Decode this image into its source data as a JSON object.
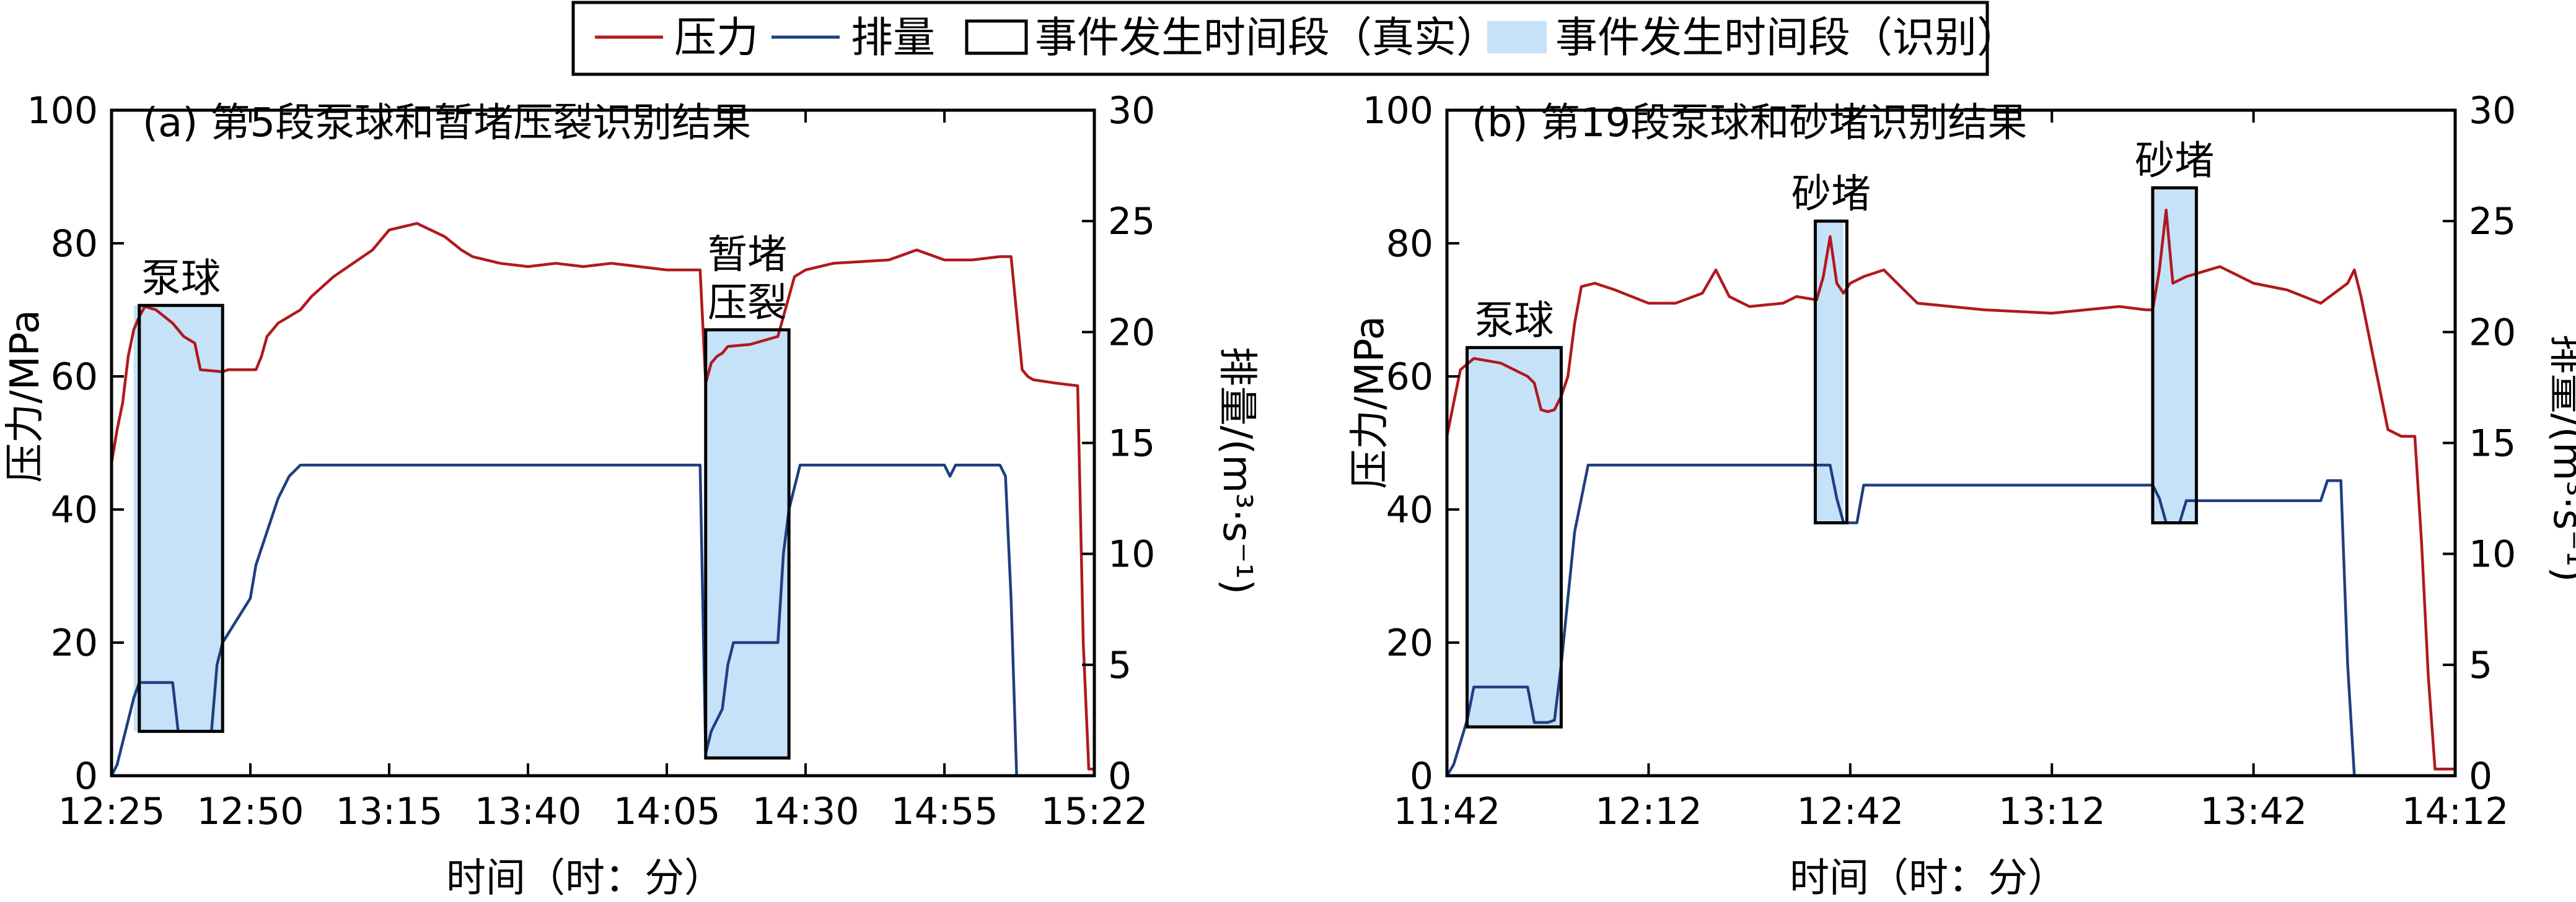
{
  "legend": {
    "items": [
      {
        "label": "压力",
        "kind": "line",
        "color": "#b0191e"
      },
      {
        "label": "排量",
        "kind": "line",
        "color": "#1f3f7f"
      },
      {
        "label": "事件发生时间段（真实）",
        "kind": "box"
      },
      {
        "label": "事件发生时间段（识别）",
        "kind": "fill",
        "color": "#c6e2f9"
      }
    ]
  },
  "colors": {
    "pressure": "#b0191e",
    "rate": "#1f3f7f",
    "identified_fill": "#c6e2f9",
    "true_box": "#000000"
  },
  "chart_data": [
    {
      "type": "line",
      "title": "(a) 第5段泵球和暂堵压裂识别结果",
      "xlabel": "时间（时：分）",
      "ylabel": "压力/MPa",
      "y2label": "排量/(m³·s⁻¹)",
      "x_unit": "minutes since 12:25",
      "xlim": [
        0,
        177
      ],
      "x_ticks": [
        0,
        25,
        50,
        75,
        100,
        125,
        150,
        177
      ],
      "x_tick_labels": [
        "12:25",
        "12:50",
        "13:15",
        "13:40",
        "14:05",
        "14:30",
        "14:55",
        "15:22"
      ],
      "ylim": [
        0,
        100
      ],
      "y_ticks": [
        0,
        20,
        40,
        60,
        80,
        100
      ],
      "y2lim": [
        0,
        30
      ],
      "y2_ticks": [
        0,
        5,
        10,
        15,
        20,
        25,
        30
      ],
      "series": [
        {
          "name": "压力",
          "axis": "left",
          "x": [
            0,
            1,
            2,
            3,
            4,
            5,
            6,
            8,
            11,
            13,
            14,
            15,
            16,
            20,
            21,
            24,
            26,
            27,
            28,
            29,
            30,
            34,
            36,
            40,
            47,
            50,
            55,
            60,
            63,
            65,
            70,
            75,
            80,
            85,
            90,
            95,
            100,
            105,
            106,
            107,
            108,
            109,
            110,
            111,
            115,
            120,
            123,
            125,
            130,
            140,
            145,
            150,
            155,
            160,
            162,
            164,
            165,
            166,
            170,
            174,
            175,
            176,
            177
          ],
          "y": [
            47,
            52,
            56,
            63,
            67,
            69,
            70.5,
            70,
            68,
            66,
            65.5,
            65,
            61,
            60.7,
            61,
            61,
            61,
            63,
            66,
            67,
            68,
            70,
            72,
            75,
            79,
            82,
            83,
            81,
            79,
            78,
            77,
            76.5,
            77,
            76.5,
            77,
            76.5,
            76,
            76,
            76,
            59,
            62,
            63,
            63.5,
            64.5,
            64.8,
            66,
            75,
            76,
            77,
            77.5,
            79,
            77.5,
            77.5,
            78,
            78,
            61,
            60,
            59.5,
            59,
            58.6,
            20,
            1,
            1
          ]
        },
        {
          "name": "排量",
          "axis": "right",
          "x": [
            0,
            1,
            2,
            3,
            4,
            5,
            8,
            11,
            12,
            13,
            18,
            19,
            20,
            25,
            26,
            28,
            30,
            32,
            34,
            36,
            38,
            41,
            43,
            50,
            105,
            106,
            107,
            108,
            110,
            111,
            112,
            113,
            120,
            121,
            122,
            123,
            124,
            125,
            126,
            130,
            150,
            151,
            152,
            160,
            161,
            162,
            163
          ],
          "y": [
            0,
            0.5,
            1.5,
            2.5,
            3.5,
            4.2,
            4.2,
            4.2,
            2,
            2,
            2,
            5,
            6,
            8,
            9.5,
            11,
            12.5,
            13.5,
            14,
            14,
            14,
            14,
            14,
            14,
            14,
            14,
            1,
            2,
            3,
            5,
            6,
            6,
            6,
            10,
            12,
            13,
            14,
            14,
            14,
            14,
            14,
            13.5,
            14,
            14,
            13.5,
            8,
            0
          ]
        }
      ],
      "events": [
        {
          "label": "泵球",
          "true": {
            "x": [
              5,
              20
            ],
            "y2": [
              2,
              21.2
            ]
          },
          "identified": {
            "x": [
              4,
              20
            ]
          }
        },
        {
          "label": "暂堵\n压裂",
          "true": {
            "x": [
              107,
              122
            ],
            "y2": [
              0.8,
              20.1
            ]
          },
          "identified": {
            "x": [
              107,
              122
            ]
          }
        }
      ]
    },
    {
      "type": "line",
      "title": "(b) 第19段泵球和砂堵识别结果",
      "xlabel": "时间（时：分）",
      "ylabel": "压力/MPa",
      "y2label": "排量/(m³·s⁻¹)",
      "x_unit": "minutes since 11:42",
      "xlim": [
        0,
        150
      ],
      "x_ticks": [
        0,
        30,
        60,
        90,
        120,
        150
      ],
      "x_tick_labels": [
        "11:42",
        "12:12",
        "12:42",
        "13:12",
        "13:42",
        "14:12"
      ],
      "ylim": [
        0,
        100
      ],
      "y_ticks": [
        0,
        20,
        40,
        60,
        80,
        100
      ],
      "y2lim": [
        0,
        30
      ],
      "y2_ticks": [
        0,
        5,
        10,
        15,
        20,
        25,
        30
      ],
      "series": [
        {
          "name": "压力",
          "axis": "left",
          "x": [
            0,
            1,
            2,
            4,
            8,
            12,
            13,
            14,
            15,
            16,
            17,
            18,
            19,
            20,
            22,
            25,
            30,
            34,
            38,
            40,
            42,
            45,
            50,
            52,
            55,
            56,
            57,
            58,
            59,
            60,
            62,
            65,
            68,
            70,
            75,
            80,
            90,
            100,
            104,
            105,
            106,
            107,
            108,
            110,
            115,
            120,
            125,
            130,
            134,
            135,
            136,
            140,
            142,
            144,
            145,
            146,
            147,
            148,
            150
          ],
          "y": [
            51,
            56,
            61,
            62.7,
            62,
            60,
            59,
            55,
            54.7,
            55,
            57,
            60,
            68,
            73.5,
            74,
            73,
            71,
            71,
            72.5,
            76,
            72,
            70.5,
            71,
            72,
            71.5,
            75,
            81,
            74,
            72.5,
            74,
            75,
            76,
            73,
            71,
            70.5,
            70,
            69.5,
            70.5,
            70,
            70,
            76,
            85,
            74,
            75,
            76.5,
            74,
            73,
            71,
            74,
            76,
            72,
            52,
            51,
            51,
            35,
            15,
            1,
            1,
            1
          ]
        },
        {
          "name": "排量",
          "axis": "right",
          "x": [
            0,
            1,
            2,
            3,
            4,
            8,
            10,
            12,
            13,
            15,
            16,
            17,
            18,
            19,
            21,
            25,
            40,
            55,
            57,
            58,
            59,
            60,
            61,
            62,
            63,
            80,
            100,
            105,
            106,
            107,
            108,
            109,
            110,
            111,
            125,
            130,
            131,
            132,
            133,
            134,
            135
          ],
          "y": [
            0,
            0.5,
            1.5,
            2.5,
            4.0,
            4.0,
            4.0,
            4.0,
            2.4,
            2.4,
            2.5,
            5,
            8,
            11,
            14,
            14,
            14,
            14,
            14,
            12.5,
            11.4,
            11.4,
            11.4,
            13.1,
            13.1,
            13.1,
            13.1,
            13.1,
            12.5,
            11.4,
            11.4,
            11.4,
            12.4,
            12.4,
            12.4,
            12.4,
            13.3,
            13.3,
            13.3,
            5,
            0
          ]
        }
      ],
      "events": [
        {
          "label": "泵球",
          "true": {
            "x": [
              3,
              17
            ],
            "y2": [
              2.2,
              19.3
            ]
          },
          "identified": {
            "x": [
              3,
              17
            ]
          }
        },
        {
          "label": "砂堵",
          "true": {
            "x": [
              54.8,
              59.5
            ],
            "y2": [
              11.4,
              25.0
            ]
          },
          "identified": {
            "x": [
              55,
              59
            ]
          }
        },
        {
          "label": "砂堵",
          "true": {
            "x": [
              105,
              111.5
            ],
            "y2": [
              11.4,
              26.5
            ]
          },
          "identified": {
            "x": [
              105,
              111.5
            ]
          }
        }
      ]
    }
  ]
}
